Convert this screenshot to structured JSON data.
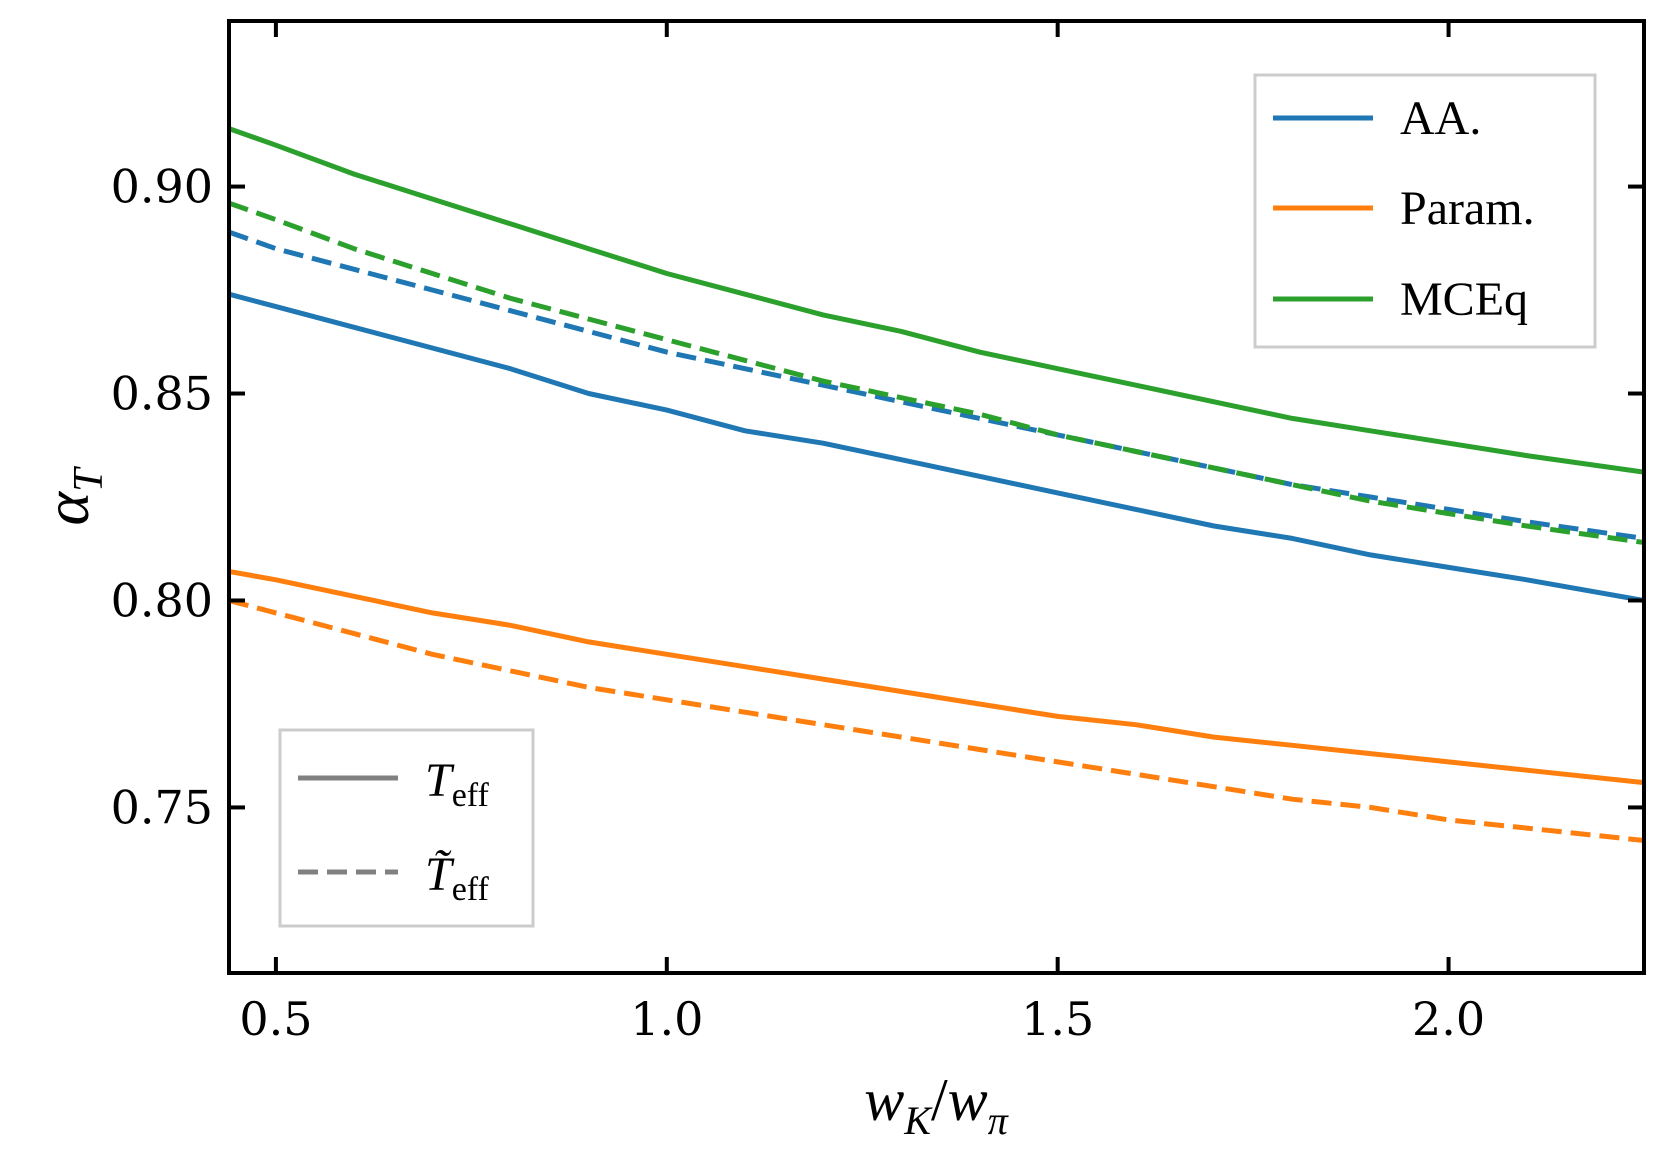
{
  "chart_data": {
    "type": "line",
    "title": "",
    "xlabel": "w_K/w_π",
    "ylabel": "α_T",
    "xlim": [
      0.44,
      2.25
    ],
    "ylim": [
      0.71,
      0.94
    ],
    "x_ticks": [
      {
        "value": 0.5,
        "label": "0.5"
      },
      {
        "value": 1.0,
        "label": "1.0"
      },
      {
        "value": 1.5,
        "label": "1.5"
      },
      {
        "value": 2.0,
        "label": "2.0"
      }
    ],
    "y_ticks": [
      {
        "value": 0.75,
        "label": "0.75"
      },
      {
        "value": 0.8,
        "label": "0.80"
      },
      {
        "value": 0.85,
        "label": "0.85"
      },
      {
        "value": 0.9,
        "label": "0.90"
      }
    ],
    "x": [
      0.44,
      0.5,
      0.6,
      0.7,
      0.8,
      0.9,
      1.0,
      1.1,
      1.2,
      1.3,
      1.4,
      1.5,
      1.6,
      1.7,
      1.8,
      1.9,
      2.0,
      2.1,
      2.25
    ],
    "series": [
      {
        "name": "AA.",
        "style": "solid",
        "color_key": "blue",
        "values": [
          0.874,
          0.871,
          0.866,
          0.861,
          0.856,
          0.85,
          0.846,
          0.841,
          0.838,
          0.834,
          0.83,
          0.826,
          0.822,
          0.818,
          0.815,
          0.811,
          0.808,
          0.805,
          0.8
        ]
      },
      {
        "name": "AA.",
        "style": "dashed",
        "color_key": "blue",
        "values": [
          0.889,
          0.885,
          0.88,
          0.875,
          0.87,
          0.865,
          0.86,
          0.856,
          0.852,
          0.848,
          0.844,
          0.84,
          0.836,
          0.832,
          0.828,
          0.825,
          0.822,
          0.819,
          0.815
        ]
      },
      {
        "name": "Param.",
        "style": "solid",
        "color_key": "orange",
        "values": [
          0.807,
          0.805,
          0.801,
          0.797,
          0.794,
          0.79,
          0.787,
          0.784,
          0.781,
          0.778,
          0.775,
          0.772,
          0.77,
          0.767,
          0.765,
          0.763,
          0.761,
          0.759,
          0.756
        ]
      },
      {
        "name": "Param.",
        "style": "dashed",
        "color_key": "orange",
        "values": [
          0.8,
          0.797,
          0.792,
          0.787,
          0.783,
          0.779,
          0.776,
          0.773,
          0.77,
          0.767,
          0.764,
          0.761,
          0.758,
          0.755,
          0.752,
          0.75,
          0.747,
          0.745,
          0.742
        ]
      },
      {
        "name": "MCEq",
        "style": "solid",
        "color_key": "green",
        "values": [
          0.914,
          0.91,
          0.903,
          0.897,
          0.891,
          0.885,
          0.879,
          0.874,
          0.869,
          0.865,
          0.86,
          0.856,
          0.852,
          0.848,
          0.844,
          0.841,
          0.838,
          0.835,
          0.831
        ]
      },
      {
        "name": "MCEq",
        "style": "dashed",
        "color_key": "green",
        "values": [
          0.896,
          0.892,
          0.885,
          0.879,
          0.873,
          0.868,
          0.863,
          0.858,
          0.853,
          0.849,
          0.845,
          0.84,
          0.836,
          0.832,
          0.828,
          0.824,
          0.821,
          0.818,
          0.814
        ]
      }
    ],
    "legend_models": {
      "placement": "top-right",
      "entries": [
        {
          "label": "AA.",
          "color_key": "blue"
        },
        {
          "label": "Param.",
          "color_key": "orange"
        },
        {
          "label": "MCEq",
          "color_key": "green"
        }
      ]
    },
    "legend_styles": {
      "placement": "bottom-left",
      "entries": [
        {
          "label": "T",
          "subscript": "eff",
          "style": "solid"
        },
        {
          "label": "T̃",
          "subscript": "eff",
          "style": "dashed"
        }
      ]
    }
  },
  "colors": {
    "blue": "#1f77b4",
    "orange": "#ff7f0e",
    "green": "#2ca02c",
    "gray": "#808080",
    "axis": "#000000",
    "legend_border": "#cccccc"
  }
}
